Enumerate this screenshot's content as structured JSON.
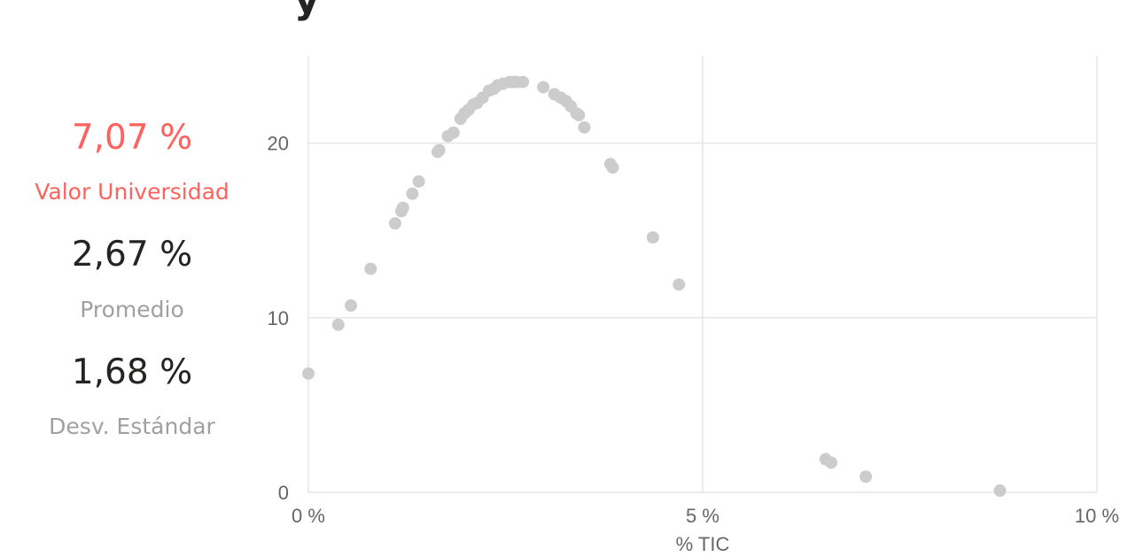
{
  "header": {
    "title_fragment": "y"
  },
  "stats": [
    {
      "value": "7,07 %",
      "label": "Valor Universidad"
    },
    {
      "value": "2,67 %",
      "label": "Promedio"
    },
    {
      "value": "1,68 %",
      "label": "Desv. Estándar"
    }
  ],
  "colors": {
    "accent": "#fd625e",
    "points": "#cccccc",
    "grid": "#e6e6e6",
    "text_dark": "#252423",
    "text_muted": "#a0a0a0",
    "tick_text": "#666666"
  },
  "chart_data": {
    "type": "scatter",
    "title": "",
    "xlabel": "% TIC",
    "ylabel": "",
    "xlim": [
      0,
      10
    ],
    "ylim": [
      0,
      25
    ],
    "x_ticks": [
      {
        "value": 0,
        "label": "0 %"
      },
      {
        "value": 5,
        "label": "5 %"
      },
      {
        "value": 10,
        "label": "10 %"
      }
    ],
    "y_ticks": [
      {
        "value": 0,
        "label": "0"
      },
      {
        "value": 10,
        "label": "10"
      },
      {
        "value": 20,
        "label": "20"
      }
    ],
    "grid": true,
    "legend": "none",
    "series": [
      {
        "x": [
          0.0,
          0.38,
          0.54,
          0.79,
          1.1,
          1.18,
          1.2,
          1.32,
          1.4,
          1.64,
          1.66,
          1.77,
          1.84,
          1.93,
          1.98,
          2.03,
          2.09,
          2.14,
          2.21,
          2.29,
          2.35,
          2.4,
          2.47,
          2.55,
          2.59,
          2.64,
          2.72,
          2.98,
          3.12,
          3.2,
          3.27,
          3.33,
          3.4,
          3.43,
          3.5,
          3.83,
          3.86,
          4.37,
          4.7,
          6.56,
          6.63,
          7.07,
          8.77
        ],
        "y": [
          6.8,
          9.6,
          10.7,
          12.8,
          15.4,
          16.1,
          16.3,
          17.1,
          17.8,
          19.5,
          19.6,
          20.4,
          20.6,
          21.4,
          21.7,
          21.9,
          22.2,
          22.3,
          22.6,
          23.0,
          23.1,
          23.3,
          23.4,
          23.5,
          23.5,
          23.5,
          23.5,
          23.2,
          22.8,
          22.6,
          22.4,
          22.1,
          21.7,
          21.6,
          20.9,
          18.8,
          18.6,
          14.6,
          11.9,
          1.9,
          1.7,
          0.9,
          0.1
        ]
      }
    ]
  }
}
